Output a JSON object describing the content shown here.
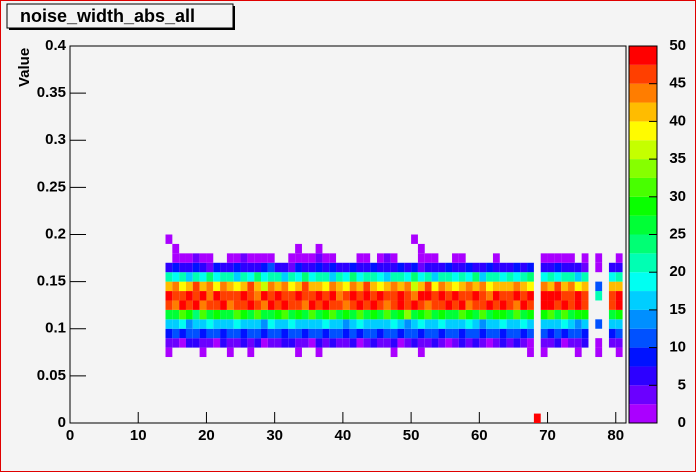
{
  "chart_data": {
    "type": "heatmap",
    "title": "noise_width_abs_all",
    "y_label": "Value",
    "xlim": [
      0,
      81.5
    ],
    "xticks": [
      0,
      10,
      20,
      30,
      40,
      50,
      60,
      70,
      80
    ],
    "ylim": [
      0,
      0.4
    ],
    "yticks": [
      0,
      0.05,
      0.1,
      0.15,
      0.2,
      0.25,
      0.3,
      0.35,
      0.4
    ],
    "zlim": [
      0,
      50
    ],
    "zticks": [
      0,
      5,
      10,
      15,
      20,
      25,
      30,
      35,
      40,
      45,
      50
    ],
    "xbins": [
      14,
      15,
      16,
      17,
      18,
      19,
      20,
      21,
      22,
      23,
      24,
      25,
      26,
      27,
      28,
      29,
      30,
      31,
      32,
      33,
      34,
      35,
      36,
      37,
      38,
      39,
      40,
      41,
      42,
      43,
      44,
      45,
      46,
      47,
      48,
      49,
      50,
      51,
      52,
      53,
      54,
      55,
      56,
      57,
      58,
      59,
      60,
      61,
      62,
      63,
      64,
      65,
      66,
      67,
      68,
      69,
      70,
      71,
      72,
      73,
      74,
      75,
      76,
      77,
      78,
      79,
      80,
      81
    ],
    "ybins": [
      0.07,
      0.08,
      0.09,
      0.1,
      0.11,
      0.12,
      0.13,
      0.14,
      0.15,
      0.16,
      0.17,
      0.18,
      0.19,
      0.2
    ],
    "z": [
      [
        1,
        0,
        0,
        0,
        0,
        1,
        0,
        0,
        0,
        1,
        0,
        0,
        1,
        0,
        0,
        0,
        0,
        0,
        0,
        1,
        0,
        0,
        1,
        0,
        0,
        0,
        0,
        0,
        0,
        0,
        0,
        0,
        0,
        1,
        0,
        0,
        0,
        1,
        0,
        0,
        0,
        0,
        0,
        0,
        0,
        0,
        0,
        0,
        0,
        0,
        0,
        0,
        0,
        1,
        0,
        1,
        0,
        0,
        0,
        0,
        1,
        0,
        0,
        1,
        0,
        0,
        1
      ],
      [
        3,
        4,
        2,
        5,
        6,
        3,
        4,
        2,
        5,
        3,
        4,
        6,
        3,
        5,
        2,
        4,
        3,
        5,
        6,
        4,
        3,
        2,
        5,
        4,
        6,
        3,
        4,
        5,
        2,
        4,
        5,
        3,
        4,
        6,
        2,
        3,
        5,
        4,
        3,
        6,
        4,
        2,
        3,
        5,
        4,
        6,
        3,
        2,
        4,
        5,
        3,
        6,
        4,
        2,
        0,
        4,
        3,
        5,
        2,
        4,
        3,
        5,
        0,
        2,
        0,
        3,
        4
      ],
      [
        9,
        11,
        8,
        10,
        12,
        9,
        10,
        11,
        8,
        10,
        12,
        9,
        10,
        11,
        8,
        10,
        12,
        9,
        11,
        10,
        8,
        11,
        10,
        9,
        12,
        10,
        8,
        11,
        9,
        10,
        11,
        9,
        10,
        12,
        8,
        10,
        11,
        9,
        10,
        12,
        9,
        10,
        11,
        8,
        10,
        12,
        9,
        11,
        10,
        8,
        10,
        11,
        9,
        12,
        0,
        10,
        9,
        11,
        8,
        10,
        12,
        9,
        0,
        0,
        0,
        8,
        10
      ],
      [
        16,
        15,
        18,
        14,
        17,
        16,
        19,
        15,
        17,
        16,
        18,
        15,
        16,
        17,
        14,
        19,
        16,
        15,
        18,
        17,
        15,
        17,
        16,
        18,
        15,
        16,
        14,
        17,
        19,
        16,
        17,
        16,
        15,
        18,
        16,
        14,
        17,
        19,
        15,
        16,
        18,
        16,
        15,
        17,
        19,
        16,
        14,
        15,
        17,
        18,
        16,
        15,
        18,
        17,
        0,
        16,
        17,
        15,
        18,
        16,
        14,
        17,
        0,
        10,
        0,
        15,
        16
      ],
      [
        27,
        25,
        30,
        28,
        24,
        31,
        26,
        29,
        27,
        25,
        30,
        28,
        26,
        32,
        27,
        25,
        29,
        31,
        26,
        28,
        27,
        30,
        25,
        28,
        32,
        26,
        29,
        27,
        31,
        25,
        28,
        26,
        30,
        27,
        29,
        33,
        25,
        28,
        30,
        26,
        29,
        27,
        25,
        31,
        28,
        26,
        30,
        27,
        29,
        28,
        26,
        30,
        27,
        29,
        0,
        28,
        30,
        27,
        31,
        26,
        29,
        28,
        0,
        0,
        0,
        27,
        29
      ],
      [
        46,
        44,
        48,
        45,
        49,
        43,
        47,
        46,
        50,
        44,
        47,
        45,
        49,
        46,
        43,
        48,
        46,
        50,
        45,
        47,
        44,
        48,
        46,
        49,
        45,
        47,
        43,
        46,
        48,
        45,
        49,
        46,
        44,
        47,
        50,
        45,
        48,
        46,
        43,
        47,
        45,
        48,
        46,
        49,
        44,
        47,
        45,
        50,
        46,
        48,
        47,
        44,
        49,
        46,
        0,
        48,
        49,
        47,
        50,
        46,
        48,
        45,
        0,
        0,
        0,
        47,
        48
      ],
      [
        48,
        47,
        45,
        49,
        46,
        50,
        44,
        48,
        47,
        46,
        45,
        49,
        47,
        44,
        48,
        46,
        50,
        47,
        45,
        49,
        47,
        45,
        49,
        46,
        48,
        44,
        47,
        50,
        46,
        48,
        46,
        48,
        45,
        47,
        49,
        46,
        44,
        48,
        50,
        45,
        48,
        46,
        49,
        45,
        47,
        48,
        46,
        44,
        49,
        47,
        45,
        48,
        46,
        50,
        0,
        49,
        48,
        50,
        47,
        46,
        49,
        47,
        0,
        20,
        0,
        46,
        48
      ],
      [
        41,
        44,
        38,
        42,
        45,
        40,
        43,
        39,
        44,
        41,
        38,
        42,
        45,
        40,
        37,
        43,
        41,
        44,
        39,
        42,
        45,
        40,
        42,
        38,
        44,
        41,
        39,
        43,
        40,
        45,
        42,
        38,
        41,
        44,
        40,
        43,
        37,
        42,
        45,
        39,
        43,
        41,
        38,
        42,
        44,
        40,
        43,
        39,
        41,
        42,
        40,
        44,
        41,
        38,
        0,
        44,
        42,
        45,
        40,
        43,
        38,
        41,
        0,
        12,
        0,
        42,
        40
      ],
      [
        20,
        18,
        22,
        17,
        21,
        19,
        23,
        18,
        20,
        22,
        17,
        21,
        19,
        24,
        18,
        20,
        22,
        17,
        21,
        19,
        23,
        18,
        20,
        21,
        17,
        22,
        19,
        24,
        18,
        20,
        21,
        19,
        17,
        22,
        20,
        18,
        23,
        19,
        21,
        17,
        20,
        22,
        18,
        21,
        19,
        23,
        17,
        20,
        22,
        18,
        21,
        19,
        20,
        23,
        0,
        19,
        21,
        18,
        22,
        20,
        17,
        21,
        0,
        0,
        0,
        18,
        20
      ],
      [
        6,
        8,
        5,
        7,
        9,
        6,
        4,
        8,
        7,
        5,
        9,
        6,
        7,
        5,
        8,
        10,
        6,
        7,
        4,
        8,
        7,
        5,
        9,
        6,
        8,
        7,
        5,
        9,
        6,
        7,
        8,
        6,
        5,
        7,
        9,
        6,
        8,
        4,
        7,
        6,
        5,
        8,
        7,
        6,
        9,
        5,
        7,
        8,
        6,
        7,
        6,
        9,
        5,
        8,
        0,
        7,
        6,
        8,
        5,
        7,
        6,
        4,
        0,
        2,
        0,
        6,
        5
      ],
      [
        0,
        2,
        1,
        2,
        3,
        2,
        1,
        0,
        0,
        2,
        1,
        3,
        2,
        1,
        2,
        2,
        0,
        0,
        1,
        2,
        2,
        1,
        3,
        2,
        1,
        0,
        0,
        0,
        1,
        2,
        0,
        2,
        3,
        1,
        0,
        0,
        0,
        2,
        1,
        2,
        0,
        0,
        2,
        1,
        0,
        0,
        0,
        0,
        2,
        0,
        0,
        0,
        0,
        0,
        0,
        2,
        1,
        1,
        2,
        1,
        0,
        1,
        0,
        1,
        0,
        0,
        1
      ],
      [
        0,
        1,
        0,
        0,
        0,
        0,
        0,
        0,
        0,
        0,
        0,
        0,
        0,
        0,
        0,
        0,
        0,
        0,
        0,
        1,
        0,
        0,
        1,
        0,
        0,
        0,
        0,
        0,
        0,
        0,
        0,
        0,
        0,
        0,
        0,
        0,
        0,
        1,
        0,
        0,
        0,
        0,
        0,
        0,
        0,
        0,
        0,
        0,
        0,
        0,
        0,
        0,
        0,
        0,
        0,
        0,
        0,
        0,
        0,
        0,
        0,
        0,
        0,
        0,
        0,
        0,
        0
      ],
      [
        1,
        0,
        0,
        0,
        0,
        0,
        0,
        0,
        0,
        0,
        0,
        0,
        0,
        0,
        0,
        0,
        0,
        0,
        0,
        0,
        0,
        0,
        0,
        0,
        0,
        0,
        0,
        0,
        0,
        0,
        0,
        0,
        0,
        0,
        0,
        0,
        1,
        0,
        0,
        0,
        0,
        0,
        0,
        0,
        0,
        0,
        0,
        0,
        0,
        0,
        0,
        0,
        0,
        0,
        0,
        0,
        0,
        0,
        0,
        0,
        0,
        0,
        0,
        0,
        0,
        0,
        0
      ]
    ],
    "extra_cells": [
      {
        "x": [
          68,
          69
        ],
        "y": [
          0,
          0.01
        ],
        "value": 50
      }
    ]
  }
}
